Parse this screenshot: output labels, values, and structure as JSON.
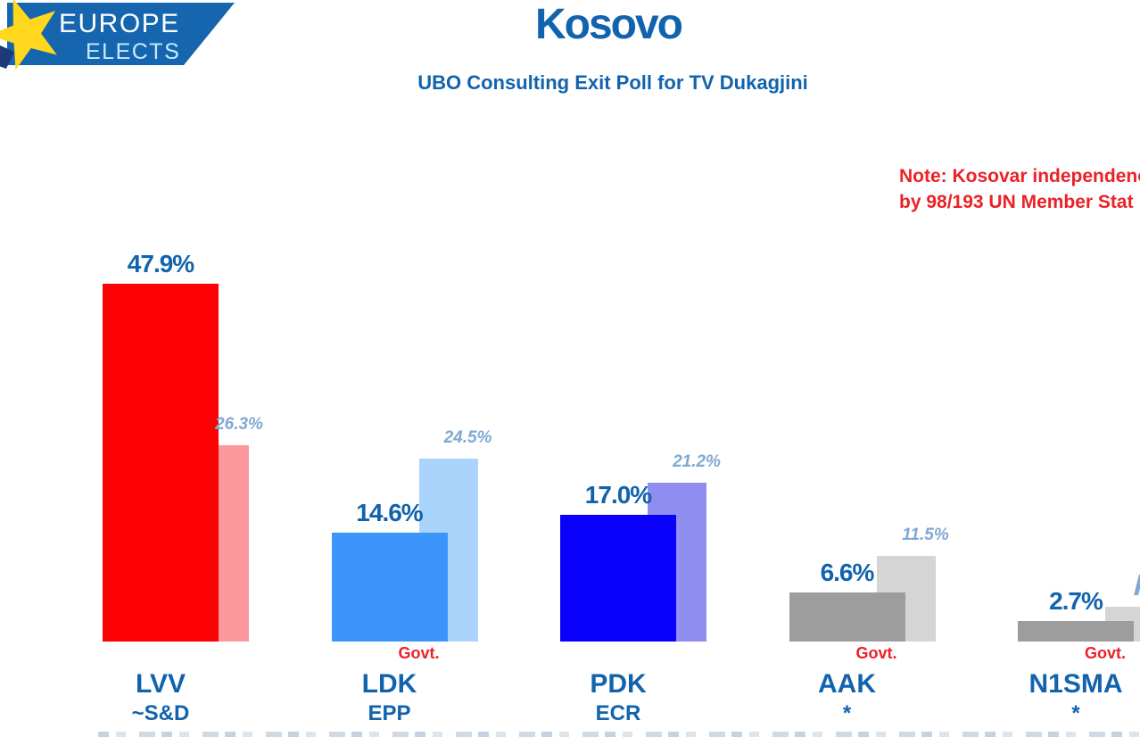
{
  "logo": {
    "text_line1": "EUROPE",
    "text_line2": "ELECTS",
    "banner_color": "#1566AF",
    "star_color": "#FFD71C"
  },
  "header": {
    "title": "Kosovo",
    "subtitle": "UBO Consulting Exit Poll for TV Dukagjini"
  },
  "note": {
    "line1": "Note: Kosovar independenc",
    "line2": "by 98/193 UN Member Stat",
    "color": "#EC2127"
  },
  "colors": {
    "text_blue": "#1263AD",
    "secondary_label_blue": "#7FA9D2",
    "alert_red": "#EC2127",
    "lvv_red": "#FC0204",
    "ldk_blue": "#3B95FA",
    "pdk_blue": "#0A01FA",
    "neutral_gray": "#9D9D9D"
  },
  "chart_data": {
    "type": "bar",
    "title": "Kosovo",
    "subtitle": "UBO Consulting Exit Poll for TV Dukagjini",
    "unit": "percent",
    "ylim": [
      0,
      50
    ],
    "grid": false,
    "legend_hint": "solid bar = exit poll result, faded bar = comparison result (right, partially cut off for N1SMA)",
    "categories": [
      "LVV",
      "LDK",
      "PDK",
      "AAK",
      "N1SMA"
    ],
    "series": [
      {
        "name": "exit_poll",
        "values": [
          47.9,
          14.6,
          17.0,
          6.6,
          2.7
        ]
      },
      {
        "name": "comparison",
        "values": [
          26.3,
          24.5,
          21.2,
          11.5,
          4.6
        ]
      }
    ],
    "govt_label": "Govt.",
    "groups": [
      {
        "party": "LVV",
        "affiliation": "~S&D",
        "value": 47.9,
        "value_label": "47.9%",
        "secondary_value": 26.3,
        "secondary_label": "26.3%",
        "in_govt": false,
        "main_color": "#FC0204",
        "secondary_color": "#FB999C"
      },
      {
        "party": "LDK",
        "affiliation": "EPP",
        "value": 14.6,
        "value_label": "14.6%",
        "secondary_value": 24.5,
        "secondary_label": "24.5%",
        "in_govt": true,
        "main_color": "#3B95FA",
        "secondary_color": "#ABD4FC"
      },
      {
        "party": "PDK",
        "affiliation": "ECR",
        "value": 17.0,
        "value_label": "17.0%",
        "secondary_value": 21.2,
        "secondary_label": "21.2%",
        "in_govt": false,
        "main_color": "#0A01FA",
        "secondary_color": "#8F8EF0"
      },
      {
        "party": "AAK",
        "affiliation": "*",
        "value": 6.6,
        "value_label": "6.6%",
        "secondary_value": 11.5,
        "secondary_label": "11.5%",
        "in_govt": true,
        "main_color": "#9D9D9D",
        "secondary_color": "#D5D5D5"
      },
      {
        "party": "N1SMA",
        "affiliation": "*",
        "value": 2.7,
        "value_label": "2.7%",
        "secondary_value": 4.6,
        "secondary_label": "",
        "in_govt": true,
        "main_color": "#9D9D9D",
        "secondary_color": "#D5D5D5"
      }
    ]
  }
}
